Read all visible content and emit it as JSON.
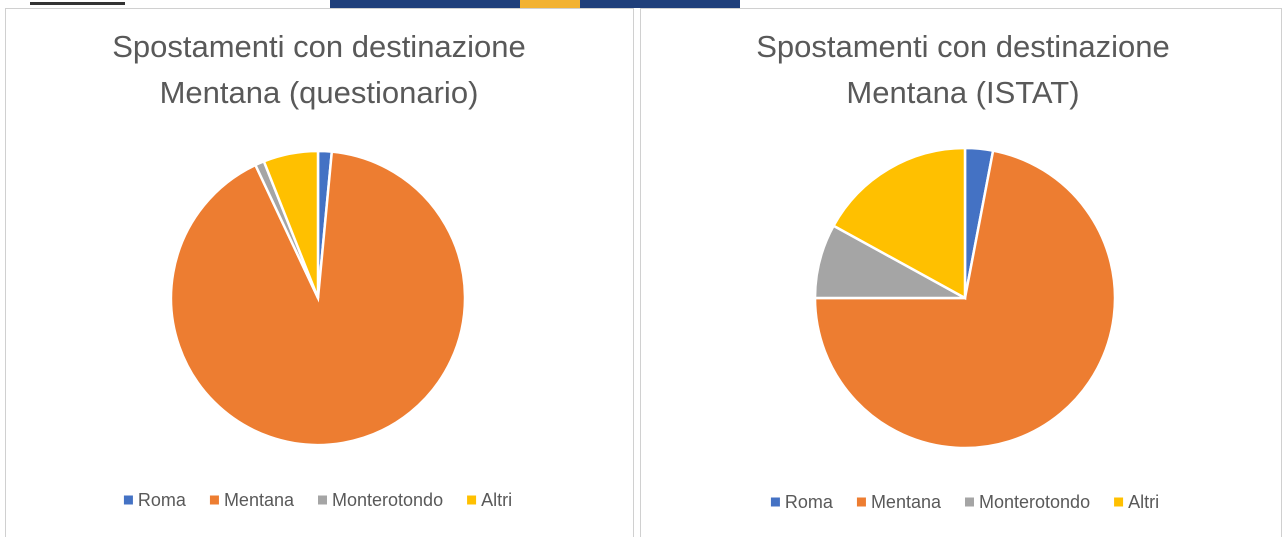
{
  "chart_data": [
    {
      "type": "pie",
      "title": "Spostamenti con destinazione Mentana (questionario)",
      "categories": [
        "Roma",
        "Mentana",
        "Monterotondo",
        "Altri"
      ],
      "values": [
        1.5,
        91.5,
        1,
        6
      ],
      "colors": [
        "#4472c4",
        "#ed7d31",
        "#a5a5a5",
        "#ffc000"
      ],
      "legend": "bottom"
    },
    {
      "type": "pie",
      "title": "Spostamenti con destinazione Mentana (ISTAT)",
      "categories": [
        "Roma",
        "Mentana",
        "Monterotondo",
        "Altri"
      ],
      "values": [
        3,
        72,
        8,
        17
      ],
      "colors": [
        "#4472c4",
        "#ed7d31",
        "#a5a5a5",
        "#ffc000"
      ],
      "legend": "bottom"
    }
  ]
}
